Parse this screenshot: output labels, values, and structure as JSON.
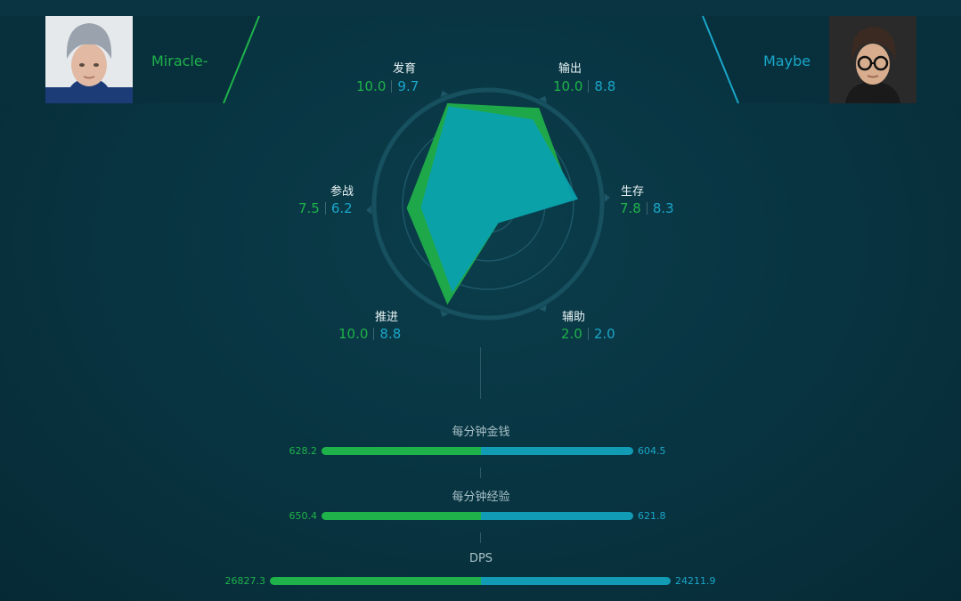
{
  "players": {
    "left": {
      "name": "Miracle-",
      "avatar": "player-photo-left"
    },
    "right": {
      "name": "Maybe",
      "avatar": "player-photo-right"
    }
  },
  "colors": {
    "left": "#1fb24a",
    "right": "#119bb5"
  },
  "radar": {
    "axes": [
      {
        "key": "farm",
        "label": "发育",
        "left": "10.0",
        "right": "9.7"
      },
      {
        "key": "damage",
        "label": "输出",
        "left": "10.0",
        "right": "8.8"
      },
      {
        "key": "survival",
        "label": "生存",
        "left": "7.8",
        "right": "8.3"
      },
      {
        "key": "support",
        "label": "辅助",
        "left": "2.0",
        "right": "2.0"
      },
      {
        "key": "push",
        "label": "推进",
        "left": "10.0",
        "right": "8.8"
      },
      {
        "key": "teamfight",
        "label": "参战",
        "left": "7.5",
        "right": "6.2"
      }
    ],
    "max": 10
  },
  "stats": [
    {
      "label": "每分钟金钱",
      "left": "628.2",
      "right": "604.5"
    },
    {
      "label": "每分钟经验",
      "left": "650.4",
      "right": "621.8"
    },
    {
      "label": "DPS",
      "left": "26827.3",
      "right": "24211.9"
    }
  ]
}
